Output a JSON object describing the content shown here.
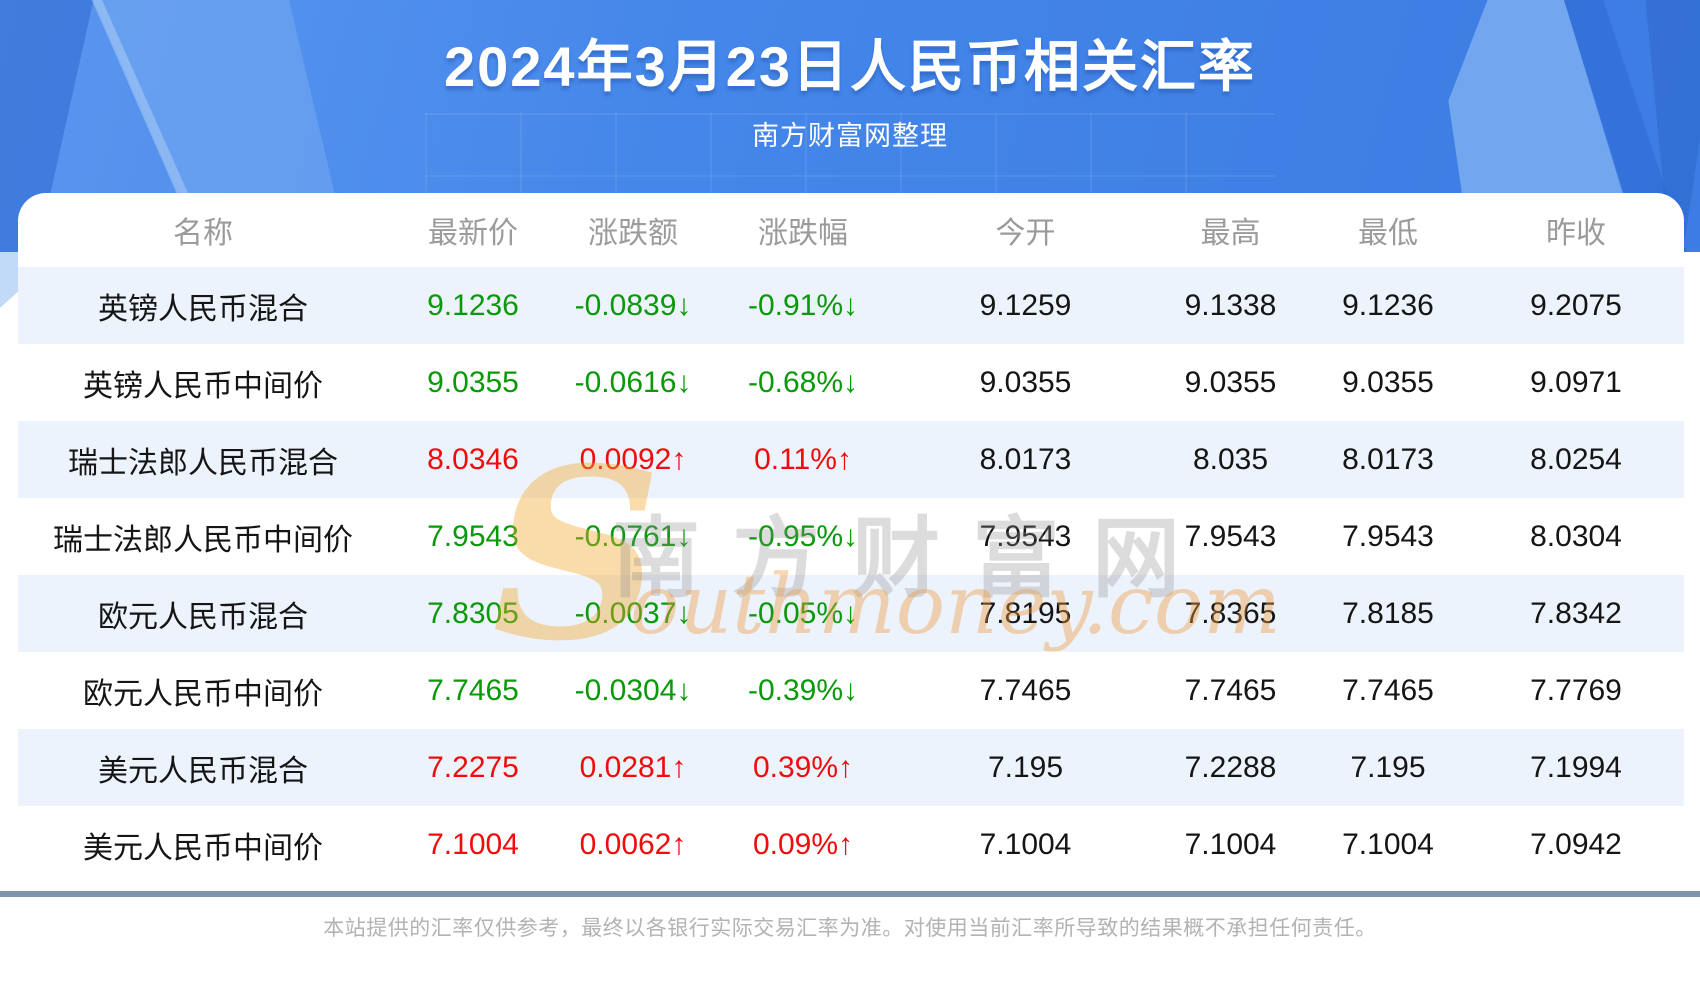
{
  "header": {
    "title": "2024年3月23日人民币相关汇率",
    "subtitle": "南方财富网整理"
  },
  "watermark": {
    "initial": "S",
    "cn": "南方财富网",
    "en": "outhmoney.com"
  },
  "footer": {
    "disclaimer": "本站提供的汇率仅供参考，最终以各银行实际交易汇率为准。对使用当前汇率所导致的结果概不承担任何责任。"
  },
  "colors": {
    "up_red": "#ef0c0c",
    "down_green": "#0a990a",
    "stripe_blue": "#edf3fc",
    "banner_blue": "#4486e9",
    "divider_slate": "#7f97ac",
    "header_text_gray": "#9b9b9b"
  },
  "table": {
    "columns": [
      "名称",
      "最新价",
      "涨跌额",
      "涨跌幅",
      "今开",
      "最高",
      "最低",
      "昨收"
    ],
    "rows": [
      {
        "name": "英镑人民币混合",
        "last": "9.1236",
        "change": "-0.0839↓",
        "change_pct": "-0.91%↓",
        "open": "9.1259",
        "high": "9.1338",
        "low": "9.1236",
        "prev_close": "9.2075",
        "trend": "down"
      },
      {
        "name": "英镑人民币中间价",
        "last": "9.0355",
        "change": "-0.0616↓",
        "change_pct": "-0.68%↓",
        "open": "9.0355",
        "high": "9.0355",
        "low": "9.0355",
        "prev_close": "9.0971",
        "trend": "down"
      },
      {
        "name": "瑞士法郎人民币混合",
        "last": "8.0346",
        "change": "0.0092↑",
        "change_pct": "0.11%↑",
        "open": "8.0173",
        "high": "8.035",
        "low": "8.0173",
        "prev_close": "8.0254",
        "trend": "up"
      },
      {
        "name": "瑞士法郎人民币中间价",
        "last": "7.9543",
        "change": "-0.0761↓",
        "change_pct": "-0.95%↓",
        "open": "7.9543",
        "high": "7.9543",
        "low": "7.9543",
        "prev_close": "8.0304",
        "trend": "down"
      },
      {
        "name": "欧元人民币混合",
        "last": "7.8305",
        "change": "-0.0037↓",
        "change_pct": "-0.05%↓",
        "open": "7.8195",
        "high": "7.8365",
        "low": "7.8185",
        "prev_close": "7.8342",
        "trend": "down"
      },
      {
        "name": "欧元人民币中间价",
        "last": "7.7465",
        "change": "-0.0304↓",
        "change_pct": "-0.39%↓",
        "open": "7.7465",
        "high": "7.7465",
        "low": "7.7465",
        "prev_close": "7.7769",
        "trend": "down"
      },
      {
        "name": "美元人民币混合",
        "last": "7.2275",
        "change": "0.0281↑",
        "change_pct": "0.39%↑",
        "open": "7.195",
        "high": "7.2288",
        "low": "7.195",
        "prev_close": "7.1994",
        "trend": "up"
      },
      {
        "name": "美元人民币中间价",
        "last": "7.1004",
        "change": "0.0062↑",
        "change_pct": "0.09%↑",
        "open": "7.1004",
        "high": "7.1004",
        "low": "7.1004",
        "prev_close": "7.0942",
        "trend": "up"
      }
    ]
  },
  "chart_data": {
    "type": "table",
    "title": "2024年3月23日人民币相关汇率",
    "source": "南方财富网整理",
    "columns": [
      "名称",
      "最新价",
      "涨跌额",
      "涨跌幅",
      "今开",
      "最高",
      "最低",
      "昨收"
    ],
    "rows": [
      [
        "英镑人民币混合",
        "9.1236",
        "-0.0839↓",
        "-0.91%↓",
        "9.1259",
        "9.1338",
        "9.1236",
        "9.2075"
      ],
      [
        "英镑人民币中间价",
        "9.0355",
        "-0.0616↓",
        "-0.68%↓",
        "9.0355",
        "9.0355",
        "9.0355",
        "9.0971"
      ],
      [
        "瑞士法郎人民币混合",
        "8.0346",
        "0.0092↑",
        "0.11%↑",
        "8.0173",
        "8.035",
        "8.0173",
        "8.0254"
      ],
      [
        "瑞士法郎人民币中间价",
        "7.9543",
        "-0.0761↓",
        "-0.95%↓",
        "7.9543",
        "7.9543",
        "7.9543",
        "8.0304"
      ],
      [
        "欧元人民币混合",
        "7.8305",
        "-0.0037↓",
        "-0.05%↓",
        "7.8195",
        "7.8365",
        "7.8185",
        "7.8342"
      ],
      [
        "欧元人民币中间价",
        "7.7465",
        "-0.0304↓",
        "-0.39%↓",
        "7.7465",
        "7.7465",
        "7.7465",
        "7.7769"
      ],
      [
        "美元人民币混合",
        "7.2275",
        "0.0281↑",
        "0.39%↑",
        "7.195",
        "7.2288",
        "7.195",
        "7.1994"
      ],
      [
        "美元人民币中间价",
        "7.1004",
        "0.0062↑",
        "0.09%↑",
        "7.1004",
        "7.1004",
        "7.1004",
        "7.0942"
      ]
    ]
  }
}
